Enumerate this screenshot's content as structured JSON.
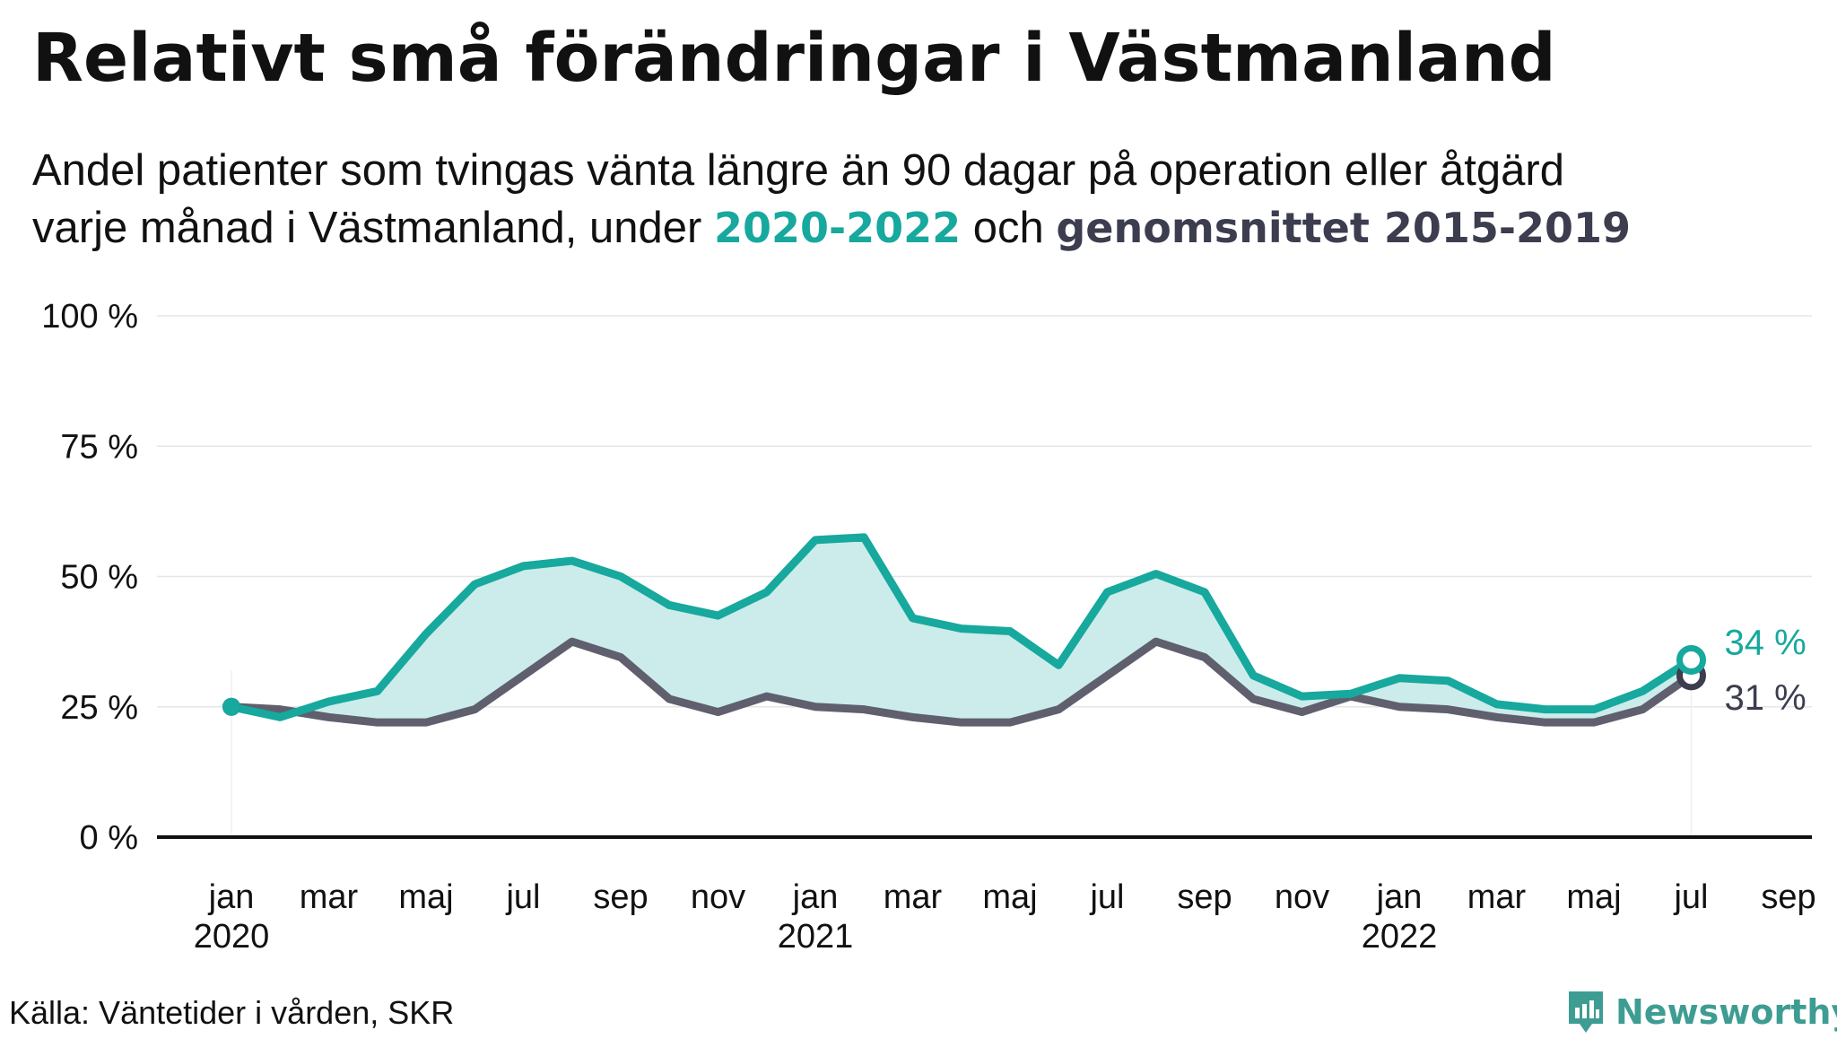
{
  "title": "Relativt små förändringar i Västmanland",
  "subtitle": {
    "line1": "Andel patienter som tvingas vänta längre än 90 dagar på operation eller åtgärd",
    "line2_prefix": "varje månad i Västmanland, under",
    "highlight_current": "2020-2022",
    "connector": "och",
    "highlight_average": "genomsnittet 2015-2019"
  },
  "colors": {
    "current": "#17a89e",
    "average": "#5f5f6e",
    "average_label": "#3c3d4f",
    "fill": "#cbecea",
    "grid": "#e6e6e6",
    "axis": "#111111"
  },
  "chart_data": {
    "type": "line",
    "x_start": "2020-01",
    "series": [
      {
        "name": "2020-2022",
        "values": [
          25,
          23,
          26,
          28,
          39,
          48.5,
          52,
          53,
          50,
          44.5,
          42.5,
          47,
          57,
          57.5,
          42,
          40,
          39.5,
          33,
          47,
          50.5,
          47,
          31,
          27,
          27.5,
          30.5,
          30,
          25.5,
          24.5,
          24.5,
          28,
          34
        ],
        "end_label": "34 %"
      },
      {
        "name": "genomsnittet 2015-2019",
        "values": [
          25,
          24.5,
          23,
          22,
          22,
          24.5,
          31,
          37.5,
          34.5,
          26.5,
          24,
          27,
          25,
          24.5,
          23,
          22,
          22,
          24.5,
          31,
          37.5,
          34.5,
          26.5,
          24,
          27,
          25,
          24.5,
          23,
          22,
          22,
          24.5,
          31
        ],
        "end_label": "31 %"
      }
    ],
    "y_ticks": [
      "0 %",
      "25 %",
      "50 %",
      "75 %",
      "100 %"
    ],
    "y_tick_values": [
      0,
      25,
      50,
      75,
      100
    ],
    "ylim": [
      0,
      100
    ],
    "x_ticks": [
      {
        "month": 0,
        "label": "jan",
        "year": "2020"
      },
      {
        "month": 2,
        "label": "mar",
        "year": ""
      },
      {
        "month": 4,
        "label": "maj",
        "year": ""
      },
      {
        "month": 6,
        "label": "jul",
        "year": ""
      },
      {
        "month": 8,
        "label": "sep",
        "year": ""
      },
      {
        "month": 10,
        "label": "nov",
        "year": ""
      },
      {
        "month": 12,
        "label": "jan",
        "year": "2021"
      },
      {
        "month": 14,
        "label": "mar",
        "year": ""
      },
      {
        "month": 16,
        "label": "maj",
        "year": ""
      },
      {
        "month": 18,
        "label": "jul",
        "year": ""
      },
      {
        "month": 20,
        "label": "sep",
        "year": ""
      },
      {
        "month": 22,
        "label": "nov",
        "year": ""
      },
      {
        "month": 24,
        "label": "jan",
        "year": "2022"
      },
      {
        "month": 26,
        "label": "mar",
        "year": ""
      },
      {
        "month": 28,
        "label": "maj",
        "year": ""
      },
      {
        "month": 30,
        "label": "jul",
        "year": ""
      },
      {
        "month": 32,
        "label": "sep",
        "year": ""
      }
    ],
    "grid": true
  },
  "source": "Källa: Väntetider i vården, SKR",
  "brand": {
    "name": "Newsworthy",
    "icon": "newsworthy-logo-icon"
  }
}
